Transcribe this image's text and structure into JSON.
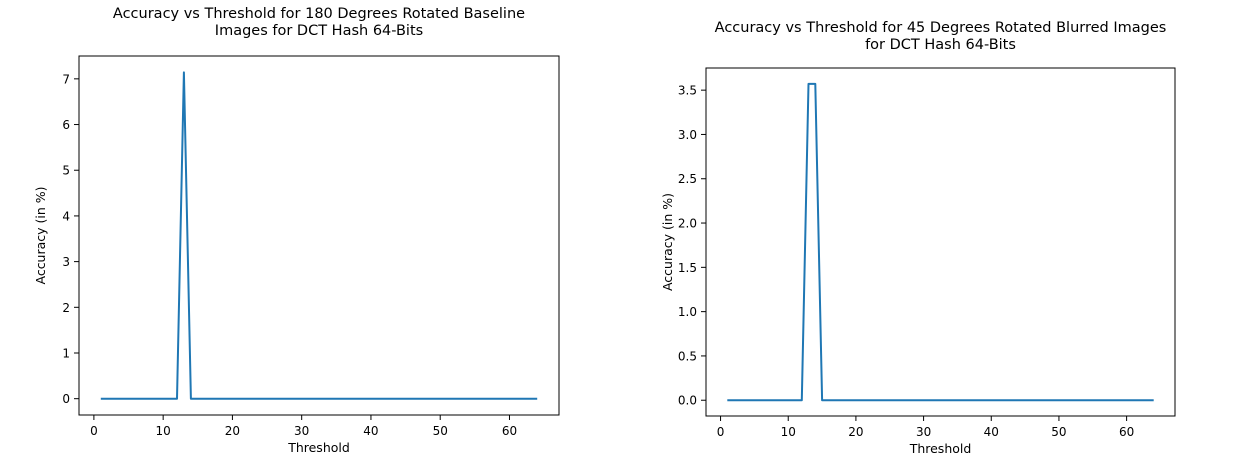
{
  "chart_data": [
    {
      "type": "line",
      "title": "Accuracy vs Threshold for 180 Degrees Rotated Baseline\nImages for DCT Hash 64-Bits",
      "xlabel": "Threshold",
      "ylabel": "Accuracy (in %)",
      "xlim": [
        -2.15,
        67.15
      ],
      "ylim": [
        -0.357,
        7.5
      ],
      "xticks": [
        0,
        10,
        20,
        30,
        40,
        50,
        60
      ],
      "yticks": [
        0,
        1,
        2,
        3,
        4,
        5,
        6,
        7
      ],
      "ytick_labels": [
        "0",
        "1",
        "2",
        "3",
        "4",
        "5",
        "6",
        "7"
      ],
      "grid": false,
      "series": [
        {
          "color": "#1f77b4",
          "x": [
            1,
            12,
            13,
            14,
            64
          ],
          "y": [
            0,
            0,
            7.14,
            0,
            0
          ]
        }
      ]
    },
    {
      "type": "line",
      "title": "Accuracy vs Threshold for 45 Degrees Rotated Blurred Images\nfor DCT Hash 64-Bits",
      "xlabel": "Threshold",
      "ylabel": "Accuracy (in %)",
      "xlim": [
        -2.15,
        67.15
      ],
      "ylim": [
        -0.178,
        3.75
      ],
      "xticks": [
        0,
        10,
        20,
        30,
        40,
        50,
        60
      ],
      "yticks": [
        0.0,
        0.5,
        1.0,
        1.5,
        2.0,
        2.5,
        3.0,
        3.5
      ],
      "ytick_labels": [
        "0.0",
        "0.5",
        "1.0",
        "1.5",
        "2.0",
        "2.5",
        "3.0",
        "3.5"
      ],
      "grid": false,
      "series": [
        {
          "color": "#1f77b4",
          "x": [
            1,
            12,
            13,
            14,
            15,
            64
          ],
          "y": [
            0,
            0,
            3.57,
            3.57,
            0,
            0
          ]
        }
      ]
    }
  ]
}
